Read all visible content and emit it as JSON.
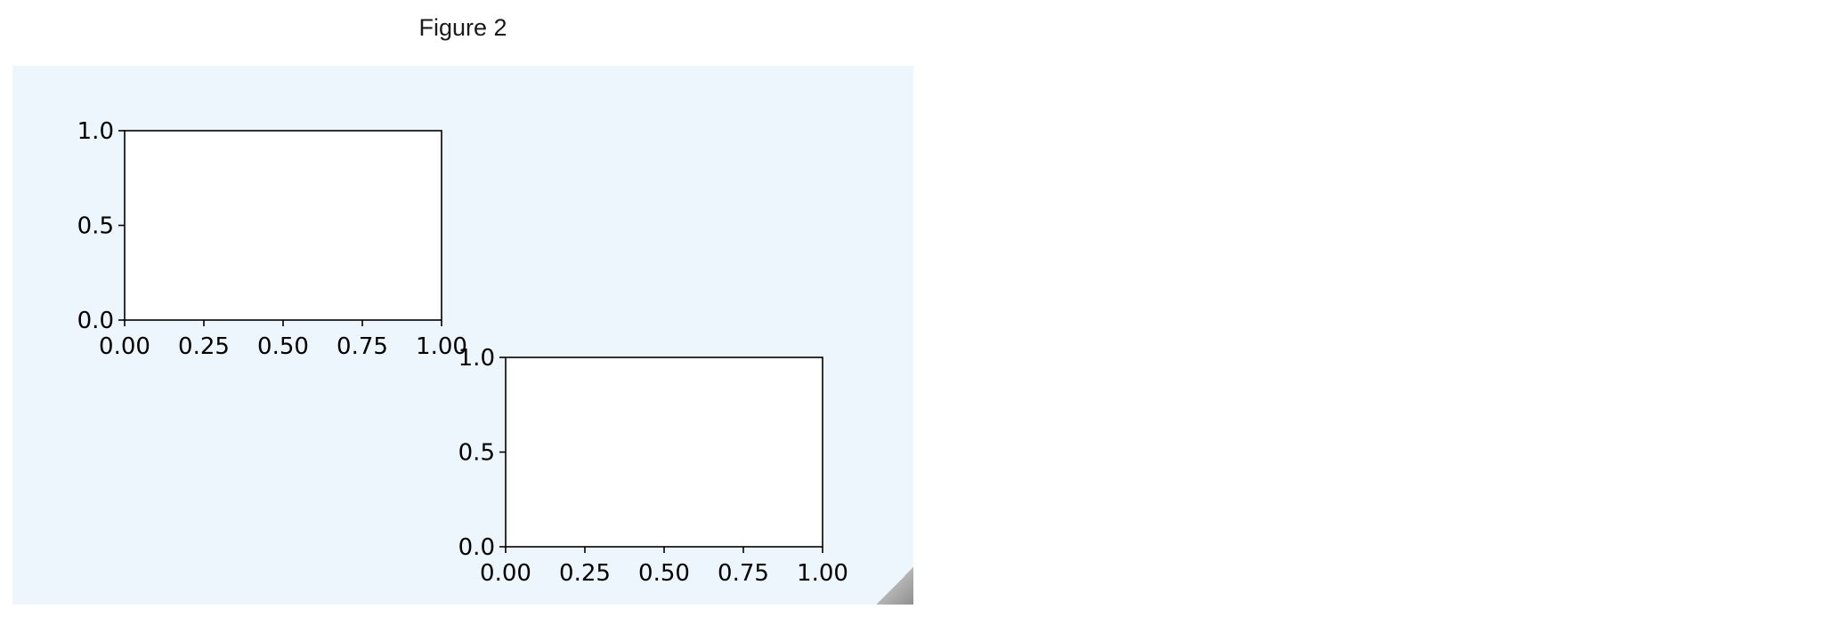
{
  "window": {
    "title": "Figure 2"
  },
  "colors": {
    "figure_background": "#edf5fd",
    "axes_background": "#ffffff",
    "axis_color": "#000000"
  },
  "chart_data": [
    {
      "type": "line",
      "series": [],
      "xlim": [
        0,
        1
      ],
      "ylim": [
        0,
        1
      ],
      "xticks": [
        0,
        0.25,
        0.5,
        0.75,
        1
      ],
      "xtick_labels": [
        "0.00",
        "0.25",
        "0.50",
        "0.75",
        "1.00"
      ],
      "yticks": [
        0,
        0.5,
        1
      ],
      "ytick_labels": [
        "0.0",
        "0.5",
        "1.0"
      ],
      "title": "",
      "xlabel": "",
      "ylabel": "",
      "grid": false,
      "position": "upper-left"
    },
    {
      "type": "line",
      "series": [],
      "xlim": [
        0,
        1
      ],
      "ylim": [
        0,
        1
      ],
      "xticks": [
        0,
        0.25,
        0.5,
        0.75,
        1
      ],
      "xtick_labels": [
        "0.00",
        "0.25",
        "0.50",
        "0.75",
        "1.00"
      ],
      "yticks": [
        0,
        0.5,
        1
      ],
      "ytick_labels": [
        "0.0",
        "0.5",
        "1.0"
      ],
      "title": "",
      "xlabel": "",
      "ylabel": "",
      "grid": false,
      "position": "lower-middle"
    }
  ]
}
